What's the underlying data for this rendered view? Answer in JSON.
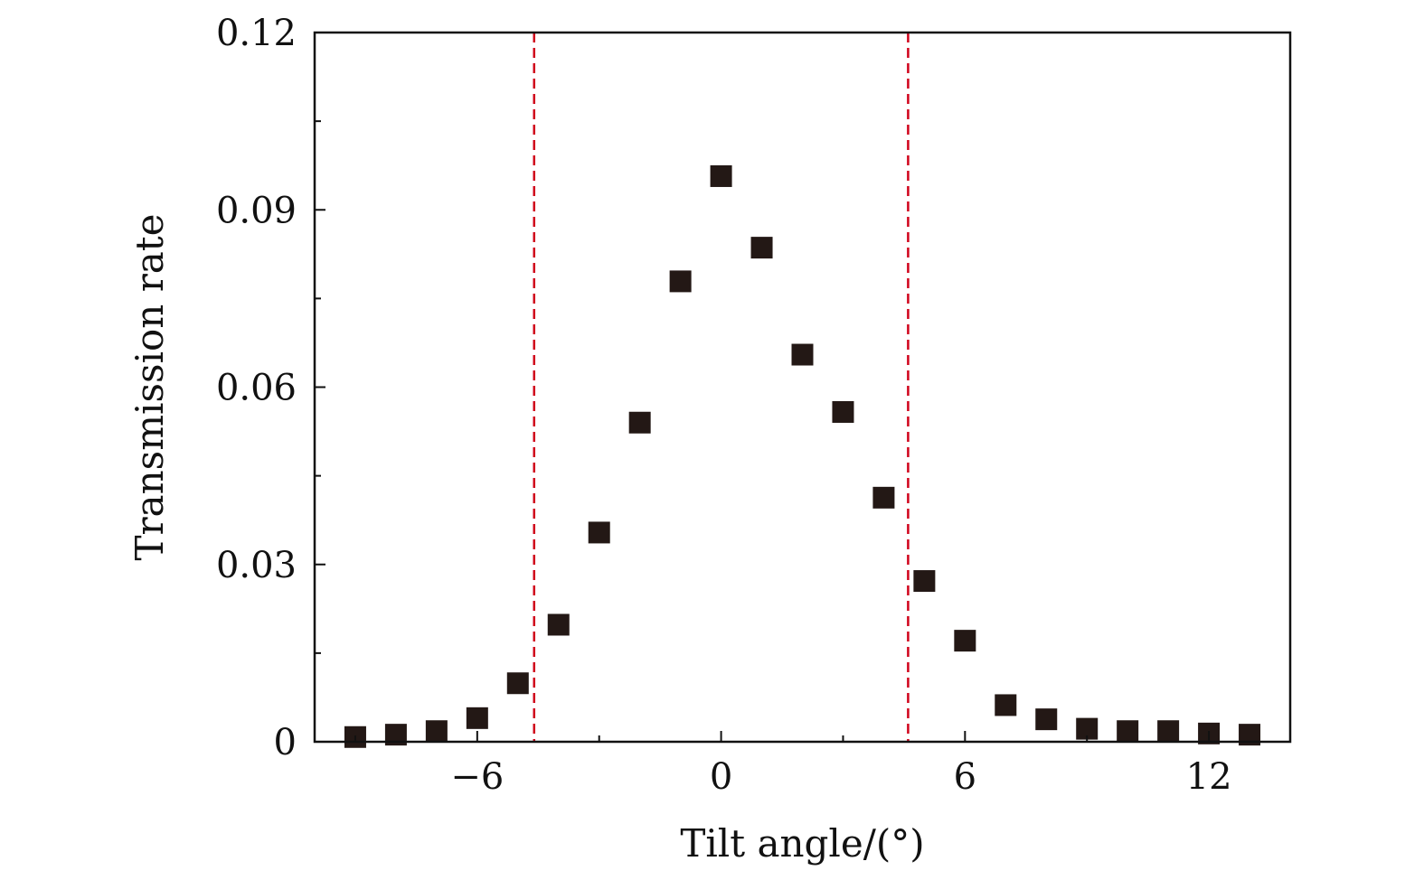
{
  "chart_data": {
    "type": "scatter",
    "title": "",
    "xlabel": "Tilt angle/(°)",
    "ylabel": "Transmission rate",
    "xlim": [
      -10,
      14
    ],
    "ylim": [
      0,
      0.12
    ],
    "x_ticks": [
      -6,
      0,
      6,
      12
    ],
    "x_tick_labels": [
      "−6",
      "0",
      "6",
      "12"
    ],
    "x_minor_ticks": [
      -9,
      -3,
      3,
      9
    ],
    "y_ticks": [
      0,
      0.03,
      0.06,
      0.09,
      0.12
    ],
    "y_tick_labels": [
      "0",
      "0.03",
      "0.06",
      "0.09",
      "0.12"
    ],
    "y_minor_ticks": [
      0.015,
      0.045,
      0.075,
      0.105
    ],
    "grid": false,
    "reference_lines": [
      {
        "orientation": "vertical",
        "x": -4.6,
        "style": "dashed",
        "color": "#d0021b"
      },
      {
        "orientation": "vertical",
        "x": 4.6,
        "style": "dashed",
        "color": "#d0021b"
      }
    ],
    "series": [
      {
        "name": "Transmission rate",
        "marker": "square",
        "color": "#231815",
        "x": [
          -9,
          -8,
          -7,
          -6,
          -5,
          -4,
          -3,
          -2,
          -1,
          0,
          1,
          2,
          3,
          4,
          5,
          6,
          7,
          8,
          9,
          10,
          11,
          12,
          13
        ],
        "y": [
          0.0008,
          0.0012,
          0.0018,
          0.004,
          0.0099,
          0.0198,
          0.0354,
          0.054,
          0.0779,
          0.0957,
          0.0836,
          0.0655,
          0.0558,
          0.0413,
          0.0272,
          0.0171,
          0.0062,
          0.0038,
          0.0022,
          0.0018,
          0.0018,
          0.0014,
          0.0012
        ]
      }
    ]
  }
}
